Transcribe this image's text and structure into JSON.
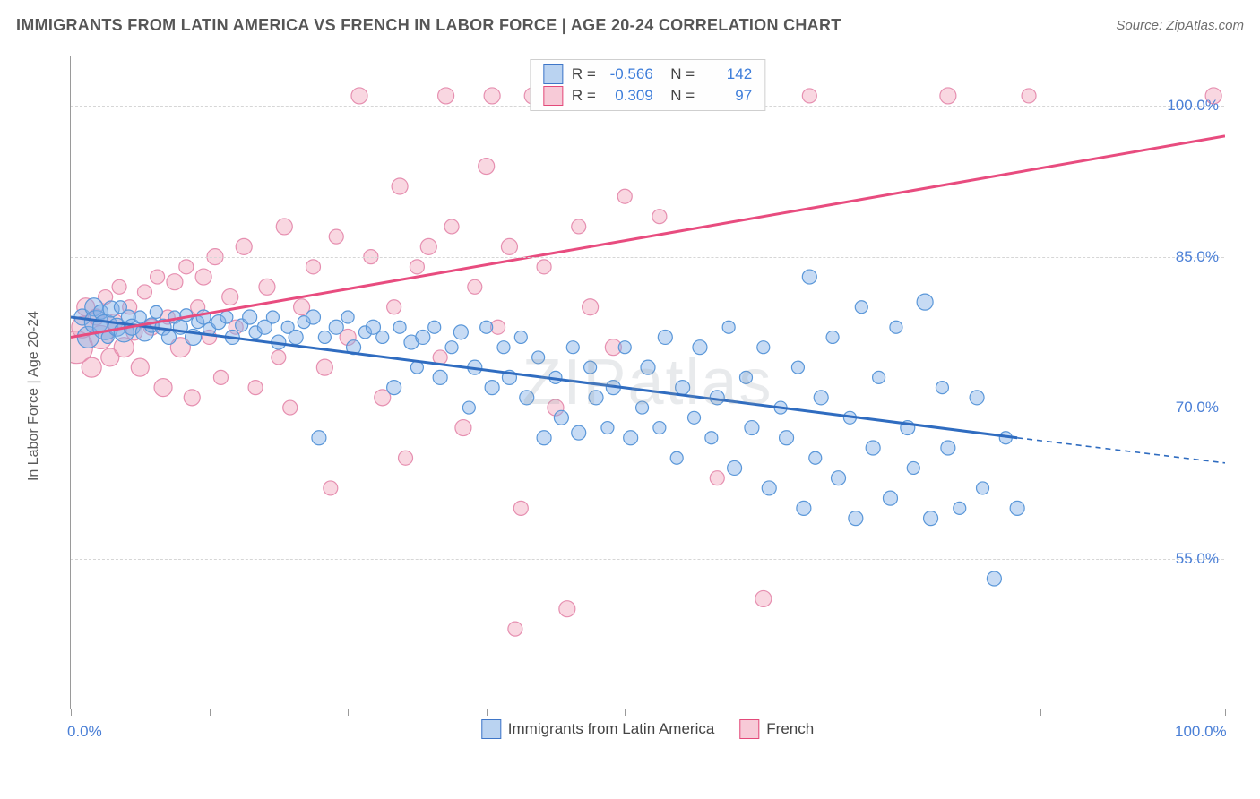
{
  "header": {
    "title": "IMMIGRANTS FROM LATIN AMERICA VS FRENCH IN LABOR FORCE | AGE 20-24 CORRELATION CHART",
    "source_prefix": "Source: ",
    "source_name": "ZipAtlas.com"
  },
  "chart": {
    "type": "scatter",
    "y_axis_title": "In Labor Force | Age 20-24",
    "xlim": [
      0,
      100
    ],
    "ylim": [
      40,
      105
    ],
    "x_ticks": [
      0,
      12,
      24,
      36,
      48,
      60,
      72,
      84,
      100
    ],
    "x_tick_labels": {
      "0": "0.0%",
      "100": "100.0%"
    },
    "y_gridlines": [
      55,
      70,
      85,
      100
    ],
    "y_tick_labels": {
      "55": "55.0%",
      "70": "70.0%",
      "85": "85.0%",
      "100": "100.0%"
    },
    "background_color": "#ffffff",
    "grid_color": "#d6d6d6",
    "axis_color": "#9a9a9a",
    "tick_label_color": "#4a7fd6",
    "watermark": "ZIPatlas",
    "series": {
      "blue": {
        "label": "Immigrants from Latin America",
        "fill": "rgba(130,175,230,0.45)",
        "stroke": "#5a97d9",
        "line_color": "#2f6cc0",
        "line_width": 3,
        "R": "-0.566",
        "N": "142",
        "trend": {
          "x1": 0,
          "y1": 79,
          "x2": 82,
          "y2": 67,
          "dash_x2": 100,
          "dash_y2": 64.5
        },
        "points": [
          {
            "x": 1,
            "y": 79,
            "r": 9
          },
          {
            "x": 1.5,
            "y": 77,
            "r": 12
          },
          {
            "x": 2,
            "y": 80,
            "r": 10
          },
          {
            "x": 2.2,
            "y": 78.5,
            "r": 13
          },
          {
            "x": 2.6,
            "y": 79.5,
            "r": 8
          },
          {
            "x": 3,
            "y": 78,
            "r": 14
          },
          {
            "x": 3.2,
            "y": 77,
            "r": 7
          },
          {
            "x": 3.5,
            "y": 79.8,
            "r": 9
          },
          {
            "x": 4,
            "y": 78,
            "r": 10
          },
          {
            "x": 4.3,
            "y": 80,
            "r": 7
          },
          {
            "x": 4.6,
            "y": 77.5,
            "r": 11
          },
          {
            "x": 5,
            "y": 79,
            "r": 8
          },
          {
            "x": 5.3,
            "y": 78,
            "r": 9
          },
          {
            "x": 6,
            "y": 79,
            "r": 7
          },
          {
            "x": 6.4,
            "y": 77.5,
            "r": 10
          },
          {
            "x": 7,
            "y": 78.2,
            "r": 8
          },
          {
            "x": 7.4,
            "y": 79.5,
            "r": 7
          },
          {
            "x": 8,
            "y": 78,
            "r": 9
          },
          {
            "x": 8.5,
            "y": 77,
            "r": 8
          },
          {
            "x": 9,
            "y": 79,
            "r": 7
          },
          {
            "x": 9.5,
            "y": 78,
            "r": 8
          },
          {
            "x": 10,
            "y": 79.2,
            "r": 7
          },
          {
            "x": 10.6,
            "y": 77,
            "r": 9
          },
          {
            "x": 11,
            "y": 78.5,
            "r": 7
          },
          {
            "x": 11.5,
            "y": 79,
            "r": 8
          },
          {
            "x": 12,
            "y": 77.8,
            "r": 7
          },
          {
            "x": 12.8,
            "y": 78.5,
            "r": 8
          },
          {
            "x": 13.5,
            "y": 79,
            "r": 7
          },
          {
            "x": 14,
            "y": 77,
            "r": 8
          },
          {
            "x": 14.8,
            "y": 78.2,
            "r": 7
          },
          {
            "x": 15.5,
            "y": 79,
            "r": 8
          },
          {
            "x": 16,
            "y": 77.5,
            "r": 7
          },
          {
            "x": 16.8,
            "y": 78,
            "r": 8
          },
          {
            "x": 17.5,
            "y": 79,
            "r": 7
          },
          {
            "x": 18,
            "y": 76.5,
            "r": 8
          },
          {
            "x": 18.8,
            "y": 78,
            "r": 7
          },
          {
            "x": 19.5,
            "y": 77,
            "r": 8
          },
          {
            "x": 20.2,
            "y": 78.5,
            "r": 7
          },
          {
            "x": 21,
            "y": 79,
            "r": 8
          },
          {
            "x": 21.5,
            "y": 67,
            "r": 8
          },
          {
            "x": 22,
            "y": 77,
            "r": 7
          },
          {
            "x": 23,
            "y": 78,
            "r": 8
          },
          {
            "x": 24,
            "y": 79,
            "r": 7
          },
          {
            "x": 24.5,
            "y": 76,
            "r": 8
          },
          {
            "x": 25.5,
            "y": 77.5,
            "r": 7
          },
          {
            "x": 26.2,
            "y": 78,
            "r": 8
          },
          {
            "x": 27,
            "y": 77,
            "r": 7
          },
          {
            "x": 28,
            "y": 72,
            "r": 8
          },
          {
            "x": 28.5,
            "y": 78,
            "r": 7
          },
          {
            "x": 29.5,
            "y": 76.5,
            "r": 8
          },
          {
            "x": 30,
            "y": 74,
            "r": 7
          },
          {
            "x": 30.5,
            "y": 77,
            "r": 8
          },
          {
            "x": 31.5,
            "y": 78,
            "r": 7
          },
          {
            "x": 32,
            "y": 73,
            "r": 8
          },
          {
            "x": 33,
            "y": 76,
            "r": 7
          },
          {
            "x": 33.8,
            "y": 77.5,
            "r": 8
          },
          {
            "x": 34.5,
            "y": 70,
            "r": 7
          },
          {
            "x": 35,
            "y": 74,
            "r": 8
          },
          {
            "x": 36,
            "y": 78,
            "r": 7
          },
          {
            "x": 36.5,
            "y": 72,
            "r": 8
          },
          {
            "x": 37.5,
            "y": 76,
            "r": 7
          },
          {
            "x": 38,
            "y": 73,
            "r": 8
          },
          {
            "x": 39,
            "y": 77,
            "r": 7
          },
          {
            "x": 39.5,
            "y": 71,
            "r": 8
          },
          {
            "x": 40.5,
            "y": 75,
            "r": 7
          },
          {
            "x": 41,
            "y": 67,
            "r": 8
          },
          {
            "x": 42,
            "y": 73,
            "r": 7
          },
          {
            "x": 42.5,
            "y": 69,
            "r": 8
          },
          {
            "x": 43.5,
            "y": 76,
            "r": 7
          },
          {
            "x": 44,
            "y": 67.5,
            "r": 8
          },
          {
            "x": 45,
            "y": 74,
            "r": 7
          },
          {
            "x": 45.5,
            "y": 71,
            "r": 8
          },
          {
            "x": 46.5,
            "y": 68,
            "r": 7
          },
          {
            "x": 47,
            "y": 72,
            "r": 8
          },
          {
            "x": 48,
            "y": 76,
            "r": 7
          },
          {
            "x": 48.5,
            "y": 67,
            "r": 8
          },
          {
            "x": 49.5,
            "y": 70,
            "r": 7
          },
          {
            "x": 50,
            "y": 74,
            "r": 8
          },
          {
            "x": 51,
            "y": 68,
            "r": 7
          },
          {
            "x": 51.5,
            "y": 77,
            "r": 8
          },
          {
            "x": 52.5,
            "y": 65,
            "r": 7
          },
          {
            "x": 53,
            "y": 72,
            "r": 8
          },
          {
            "x": 54,
            "y": 69,
            "r": 7
          },
          {
            "x": 54.5,
            "y": 76,
            "r": 8
          },
          {
            "x": 55.5,
            "y": 67,
            "r": 7
          },
          {
            "x": 56,
            "y": 71,
            "r": 8
          },
          {
            "x": 57,
            "y": 78,
            "r": 7
          },
          {
            "x": 57.5,
            "y": 64,
            "r": 8
          },
          {
            "x": 58.5,
            "y": 73,
            "r": 7
          },
          {
            "x": 59,
            "y": 68,
            "r": 8
          },
          {
            "x": 60,
            "y": 76,
            "r": 7
          },
          {
            "x": 60.5,
            "y": 62,
            "r": 8
          },
          {
            "x": 61.5,
            "y": 70,
            "r": 7
          },
          {
            "x": 62,
            "y": 67,
            "r": 8
          },
          {
            "x": 63,
            "y": 74,
            "r": 7
          },
          {
            "x": 63.5,
            "y": 60,
            "r": 8
          },
          {
            "x": 64,
            "y": 83,
            "r": 8
          },
          {
            "x": 64.5,
            "y": 65,
            "r": 7
          },
          {
            "x": 65,
            "y": 71,
            "r": 8
          },
          {
            "x": 66,
            "y": 77,
            "r": 7
          },
          {
            "x": 66.5,
            "y": 63,
            "r": 8
          },
          {
            "x": 67.5,
            "y": 69,
            "r": 7
          },
          {
            "x": 68,
            "y": 59,
            "r": 8
          },
          {
            "x": 68.5,
            "y": 80,
            "r": 7
          },
          {
            "x": 69.5,
            "y": 66,
            "r": 8
          },
          {
            "x": 70,
            "y": 73,
            "r": 7
          },
          {
            "x": 71,
            "y": 61,
            "r": 8
          },
          {
            "x": 71.5,
            "y": 78,
            "r": 7
          },
          {
            "x": 72.5,
            "y": 68,
            "r": 8
          },
          {
            "x": 73,
            "y": 64,
            "r": 7
          },
          {
            "x": 74,
            "y": 80.5,
            "r": 9
          },
          {
            "x": 74.5,
            "y": 59,
            "r": 8
          },
          {
            "x": 75.5,
            "y": 72,
            "r": 7
          },
          {
            "x": 76,
            "y": 66,
            "r": 8
          },
          {
            "x": 77,
            "y": 60,
            "r": 7
          },
          {
            "x": 78.5,
            "y": 71,
            "r": 8
          },
          {
            "x": 79,
            "y": 62,
            "r": 7
          },
          {
            "x": 80,
            "y": 53,
            "r": 8
          },
          {
            "x": 81,
            "y": 67,
            "r": 7
          },
          {
            "x": 82,
            "y": 60,
            "r": 8
          }
        ]
      },
      "pink": {
        "label": "French",
        "fill": "rgba(240,150,175,0.38)",
        "stroke": "#e68fb0",
        "line_color": "#e84c7f",
        "line_width": 3,
        "R": "0.309",
        "N": "97",
        "trend": {
          "x1": 0,
          "y1": 77,
          "x2": 100,
          "y2": 97
        },
        "points": [
          {
            "x": 0.5,
            "y": 76,
            "r": 18
          },
          {
            "x": 1,
            "y": 78,
            "r": 12
          },
          {
            "x": 1.3,
            "y": 80,
            "r": 10
          },
          {
            "x": 1.8,
            "y": 74,
            "r": 11
          },
          {
            "x": 2.2,
            "y": 79,
            "r": 9
          },
          {
            "x": 2.6,
            "y": 77,
            "r": 13
          },
          {
            "x": 3,
            "y": 81,
            "r": 8
          },
          {
            "x": 3.4,
            "y": 75,
            "r": 10
          },
          {
            "x": 3.8,
            "y": 78.5,
            "r": 9
          },
          {
            "x": 4.2,
            "y": 82,
            "r": 8
          },
          {
            "x": 4.6,
            "y": 76,
            "r": 11
          },
          {
            "x": 5.1,
            "y": 80,
            "r": 8
          },
          {
            "x": 5.5,
            "y": 77.5,
            "r": 9
          },
          {
            "x": 6,
            "y": 74,
            "r": 10
          },
          {
            "x": 6.4,
            "y": 81.5,
            "r": 8
          },
          {
            "x": 7,
            "y": 78,
            "r": 9
          },
          {
            "x": 7.5,
            "y": 83,
            "r": 8
          },
          {
            "x": 8,
            "y": 72,
            "r": 10
          },
          {
            "x": 8.4,
            "y": 79,
            "r": 8
          },
          {
            "x": 9,
            "y": 82.5,
            "r": 9
          },
          {
            "x": 9.5,
            "y": 76,
            "r": 11
          },
          {
            "x": 10,
            "y": 84,
            "r": 8
          },
          {
            "x": 10.5,
            "y": 71,
            "r": 9
          },
          {
            "x": 11,
            "y": 80,
            "r": 8
          },
          {
            "x": 11.5,
            "y": 83,
            "r": 9
          },
          {
            "x": 12,
            "y": 77,
            "r": 8
          },
          {
            "x": 12.5,
            "y": 85,
            "r": 9
          },
          {
            "x": 13,
            "y": 73,
            "r": 8
          },
          {
            "x": 13.8,
            "y": 81,
            "r": 9
          },
          {
            "x": 14.3,
            "y": 78,
            "r": 8
          },
          {
            "x": 15,
            "y": 86,
            "r": 9
          },
          {
            "x": 16,
            "y": 72,
            "r": 8
          },
          {
            "x": 17,
            "y": 82,
            "r": 9
          },
          {
            "x": 18,
            "y": 75,
            "r": 8
          },
          {
            "x": 18.5,
            "y": 88,
            "r": 9
          },
          {
            "x": 19,
            "y": 70,
            "r": 8
          },
          {
            "x": 20,
            "y": 80,
            "r": 9
          },
          {
            "x": 21,
            "y": 84,
            "r": 8
          },
          {
            "x": 22,
            "y": 74,
            "r": 9
          },
          {
            "x": 22.5,
            "y": 62,
            "r": 8
          },
          {
            "x": 23,
            "y": 87,
            "r": 8
          },
          {
            "x": 24,
            "y": 77,
            "r": 9
          },
          {
            "x": 25,
            "y": 101,
            "r": 9
          },
          {
            "x": 26,
            "y": 85,
            "r": 8
          },
          {
            "x": 27,
            "y": 71,
            "r": 9
          },
          {
            "x": 28,
            "y": 80,
            "r": 8
          },
          {
            "x": 28.5,
            "y": 92,
            "r": 9
          },
          {
            "x": 29,
            "y": 65,
            "r": 8
          },
          {
            "x": 30,
            "y": 84,
            "r": 8
          },
          {
            "x": 31,
            "y": 86,
            "r": 9
          },
          {
            "x": 32,
            "y": 75,
            "r": 8
          },
          {
            "x": 32.5,
            "y": 101,
            "r": 9
          },
          {
            "x": 33,
            "y": 88,
            "r": 8
          },
          {
            "x": 34,
            "y": 68,
            "r": 9
          },
          {
            "x": 35,
            "y": 82,
            "r": 8
          },
          {
            "x": 36,
            "y": 94,
            "r": 9
          },
          {
            "x": 36.5,
            "y": 101,
            "r": 9
          },
          {
            "x": 37,
            "y": 78,
            "r": 8
          },
          {
            "x": 38,
            "y": 86,
            "r": 9
          },
          {
            "x": 38.5,
            "y": 48,
            "r": 8
          },
          {
            "x": 39,
            "y": 60,
            "r": 8
          },
          {
            "x": 40,
            "y": 101,
            "r": 9
          },
          {
            "x": 41,
            "y": 84,
            "r": 8
          },
          {
            "x": 42,
            "y": 70,
            "r": 9
          },
          {
            "x": 42.5,
            "y": 101,
            "r": 8
          },
          {
            "x": 43,
            "y": 50,
            "r": 9
          },
          {
            "x": 44,
            "y": 88,
            "r": 8
          },
          {
            "x": 45,
            "y": 80,
            "r": 9
          },
          {
            "x": 46,
            "y": 101,
            "r": 8
          },
          {
            "x": 47,
            "y": 76,
            "r": 9
          },
          {
            "x": 48,
            "y": 91,
            "r": 8
          },
          {
            "x": 51,
            "y": 89,
            "r": 8
          },
          {
            "x": 53,
            "y": 101,
            "r": 9
          },
          {
            "x": 56,
            "y": 63,
            "r": 8
          },
          {
            "x": 60,
            "y": 51,
            "r": 9
          },
          {
            "x": 64,
            "y": 101,
            "r": 8
          },
          {
            "x": 76,
            "y": 101,
            "r": 9
          },
          {
            "x": 83,
            "y": 101,
            "r": 8
          },
          {
            "x": 99,
            "y": 101,
            "r": 9
          }
        ]
      }
    },
    "bottom_legend": [
      {
        "key": "blue",
        "label": "Immigrants from Latin America"
      },
      {
        "key": "pink",
        "label": "French"
      }
    ]
  }
}
